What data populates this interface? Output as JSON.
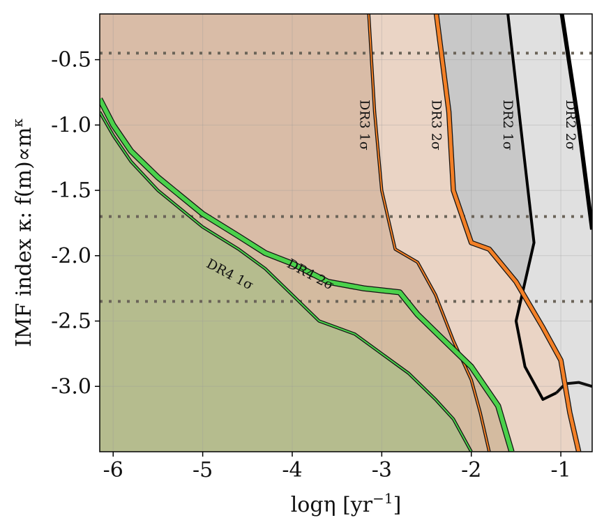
{
  "chart_data": {
    "type": "area",
    "xlabel": "logη [yr",
    "xlabel_sup": "−1",
    "xlabel_tail": "]",
    "ylabel": "IMF index κ: f(m)∝m",
    "ylabel_sup": "κ",
    "xlim": [
      -6.15,
      -0.65
    ],
    "ylim": [
      -3.5,
      -0.15
    ],
    "xticks": [
      -6,
      -5,
      -4,
      -3,
      -2,
      -1
    ],
    "xtick_labels": [
      "-6",
      "-5",
      "-4",
      "-3",
      "-2",
      "-1"
    ],
    "yticks": [
      -3.0,
      -2.5,
      -2.0,
      -1.5,
      -1.0,
      -0.5
    ],
    "ytick_labels": [
      "-3.0",
      "-2.5",
      "-2.0",
      "-1.5",
      "-1.0",
      "-0.5"
    ],
    "grid": true,
    "reference_lines_y": [
      -0.45,
      -1.7,
      -2.35
    ],
    "series": [
      {
        "name": "DR2 2σ",
        "color": "#000000",
        "fill": "#e0e0e0",
        "width": 6,
        "points": [
          [
            -1.0,
            -0.1
          ],
          [
            -0.8,
            -1.0
          ],
          [
            -0.65,
            -1.8
          ]
        ],
        "base": [
          [
            -1.05,
            -3.05
          ],
          [
            -0.95,
            -2.98
          ],
          [
            -0.8,
            -2.97
          ],
          [
            -0.65,
            -3.0
          ]
        ]
      },
      {
        "name": "DR2 1σ",
        "color": "#000000",
        "fill": "#c8c8c8",
        "width": 4,
        "points": [
          [
            -1.6,
            -0.1
          ],
          [
            -1.45,
            -1.0
          ],
          [
            -1.3,
            -1.9
          ],
          [
            -1.5,
            -2.5
          ],
          [
            -1.4,
            -2.85
          ],
          [
            -1.2,
            -3.1
          ],
          [
            -1.05,
            -3.05
          ]
        ]
      },
      {
        "name": "DR3 2σ",
        "color": "#f38027",
        "fill": "#ead4c5",
        "width": 5,
        "points": [
          [
            -2.4,
            -0.1
          ],
          [
            -2.25,
            -0.9
          ],
          [
            -2.2,
            -1.5
          ],
          [
            -2.0,
            -1.9
          ],
          [
            -1.8,
            -1.95
          ],
          [
            -1.5,
            -2.2
          ],
          [
            -1.2,
            -2.55
          ],
          [
            -1.0,
            -2.8
          ],
          [
            -0.9,
            -3.2
          ],
          [
            -0.8,
            -3.5
          ]
        ]
      },
      {
        "name": "DR3 1σ",
        "color": "#f38027",
        "fill": "#d9bca7",
        "width": 2,
        "points": [
          [
            -3.15,
            -0.1
          ],
          [
            -3.08,
            -0.9
          ],
          [
            -3.0,
            -1.5
          ],
          [
            -2.85,
            -1.95
          ],
          [
            -2.6,
            -2.05
          ],
          [
            -2.4,
            -2.3
          ],
          [
            -2.2,
            -2.65
          ],
          [
            -2.0,
            -2.95
          ],
          [
            -1.9,
            -3.2
          ],
          [
            -1.8,
            -3.5
          ]
        ]
      },
      {
        "name": "DR4 2σ",
        "color": "#4bd14b",
        "fill": "#d4bba0",
        "width": 6,
        "points": [
          [
            -6.15,
            -0.8
          ],
          [
            -6.0,
            -1.0
          ],
          [
            -5.8,
            -1.2
          ],
          [
            -5.5,
            -1.4
          ],
          [
            -5.0,
            -1.68
          ],
          [
            -4.6,
            -1.85
          ],
          [
            -4.3,
            -1.98
          ],
          [
            -4.0,
            -2.06
          ],
          [
            -3.6,
            -2.2
          ],
          [
            -3.2,
            -2.25
          ],
          [
            -2.8,
            -2.28
          ],
          [
            -2.6,
            -2.45
          ],
          [
            -2.3,
            -2.65
          ],
          [
            -2.0,
            -2.85
          ],
          [
            -1.7,
            -3.15
          ],
          [
            -1.55,
            -3.5
          ]
        ]
      },
      {
        "name": "DR4 1σ",
        "color": "#4bd14b",
        "fill": "#b5bc8e",
        "width": 2,
        "points": [
          [
            -6.15,
            -0.9
          ],
          [
            -6.0,
            -1.08
          ],
          [
            -5.8,
            -1.28
          ],
          [
            -5.5,
            -1.5
          ],
          [
            -5.0,
            -1.78
          ],
          [
            -4.6,
            -1.95
          ],
          [
            -4.3,
            -2.1
          ],
          [
            -4.0,
            -2.3
          ],
          [
            -3.7,
            -2.5
          ],
          [
            -3.3,
            -2.6
          ],
          [
            -3.0,
            -2.75
          ],
          [
            -2.7,
            -2.9
          ],
          [
            -2.4,
            -3.1
          ],
          [
            -2.2,
            -3.25
          ],
          [
            -2.0,
            -3.5
          ]
        ]
      }
    ],
    "labels": [
      {
        "text": "DR2 2σ",
        "x": -0.9,
        "y": -1.0,
        "angle": 90
      },
      {
        "text": "DR2 1σ",
        "x": -1.6,
        "y": -1.0,
        "angle": 90
      },
      {
        "text": "DR3 2σ",
        "x": -2.4,
        "y": -1.0,
        "angle": 90
      },
      {
        "text": "DR3 1σ",
        "x": -3.2,
        "y": -1.0,
        "angle": 90
      },
      {
        "text": "DR4 2σ",
        "x": -3.8,
        "y": -2.15,
        "angle": 28
      },
      {
        "text": "DR4 1σ",
        "x": -4.7,
        "y": -2.15,
        "angle": 28
      }
    ]
  }
}
